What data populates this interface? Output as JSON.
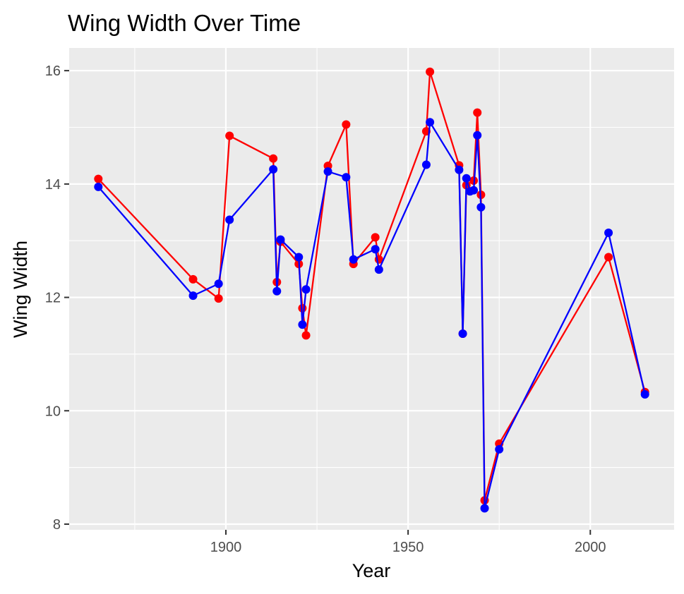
{
  "chart_data": {
    "type": "line",
    "title": "Wing Width Over Time",
    "xlabel": "Year",
    "ylabel": "Wing Width",
    "xlim": [
      1857,
      2023
    ],
    "ylim": [
      7.9,
      16.4
    ],
    "x_ticks": [
      1900,
      1950,
      2000
    ],
    "x_minor": [
      1875,
      1925,
      1975,
      2025
    ],
    "y_ticks": [
      8,
      10,
      12,
      14,
      16
    ],
    "y_minor": [
      9,
      11,
      13,
      15
    ],
    "grid": true,
    "legend": "none",
    "series": [
      {
        "color": "#ff0000",
        "points": [
          [
            1865,
            14.09
          ],
          [
            1891,
            12.32
          ],
          [
            1898,
            11.98
          ],
          [
            1901,
            14.85
          ],
          [
            1913,
            14.45
          ],
          [
            1914,
            12.27
          ],
          [
            1915,
            12.98
          ],
          [
            1920,
            12.59
          ],
          [
            1921,
            11.81
          ],
          [
            1922,
            11.33
          ],
          [
            1928,
            14.32
          ],
          [
            1933,
            15.05
          ],
          [
            1935,
            12.59
          ],
          [
            1941,
            13.06
          ],
          [
            1942,
            12.67
          ],
          [
            1955,
            14.93
          ],
          [
            1956,
            15.98
          ],
          [
            1964,
            14.33
          ],
          [
            1965,
            11.36
          ],
          [
            1966,
            13.98
          ],
          [
            1968,
            14.06
          ],
          [
            1969,
            15.26
          ],
          [
            1970,
            13.81
          ],
          [
            1971,
            8.42
          ],
          [
            1975,
            9.42
          ],
          [
            2005,
            12.71
          ],
          [
            2015,
            10.33
          ]
        ]
      },
      {
        "color": "#0000ff",
        "points": [
          [
            1865,
            13.95
          ],
          [
            1891,
            12.03
          ],
          [
            1898,
            12.24
          ],
          [
            1901,
            13.37
          ],
          [
            1913,
            14.26
          ],
          [
            1914,
            12.11
          ],
          [
            1915,
            13.02
          ],
          [
            1920,
            12.71
          ],
          [
            1921,
            11.52
          ],
          [
            1922,
            12.14
          ],
          [
            1928,
            14.22
          ],
          [
            1933,
            14.12
          ],
          [
            1935,
            12.67
          ],
          [
            1941,
            12.85
          ],
          [
            1942,
            12.49
          ],
          [
            1955,
            14.34
          ],
          [
            1956,
            15.09
          ],
          [
            1964,
            14.25
          ],
          [
            1965,
            11.36
          ],
          [
            1966,
            14.1
          ],
          [
            1967,
            13.87
          ],
          [
            1968,
            13.89
          ],
          [
            1969,
            14.86
          ],
          [
            1970,
            13.59
          ],
          [
            1971,
            8.28
          ],
          [
            1975,
            9.32
          ],
          [
            2005,
            13.14
          ],
          [
            2015,
            10.29
          ]
        ]
      }
    ]
  }
}
